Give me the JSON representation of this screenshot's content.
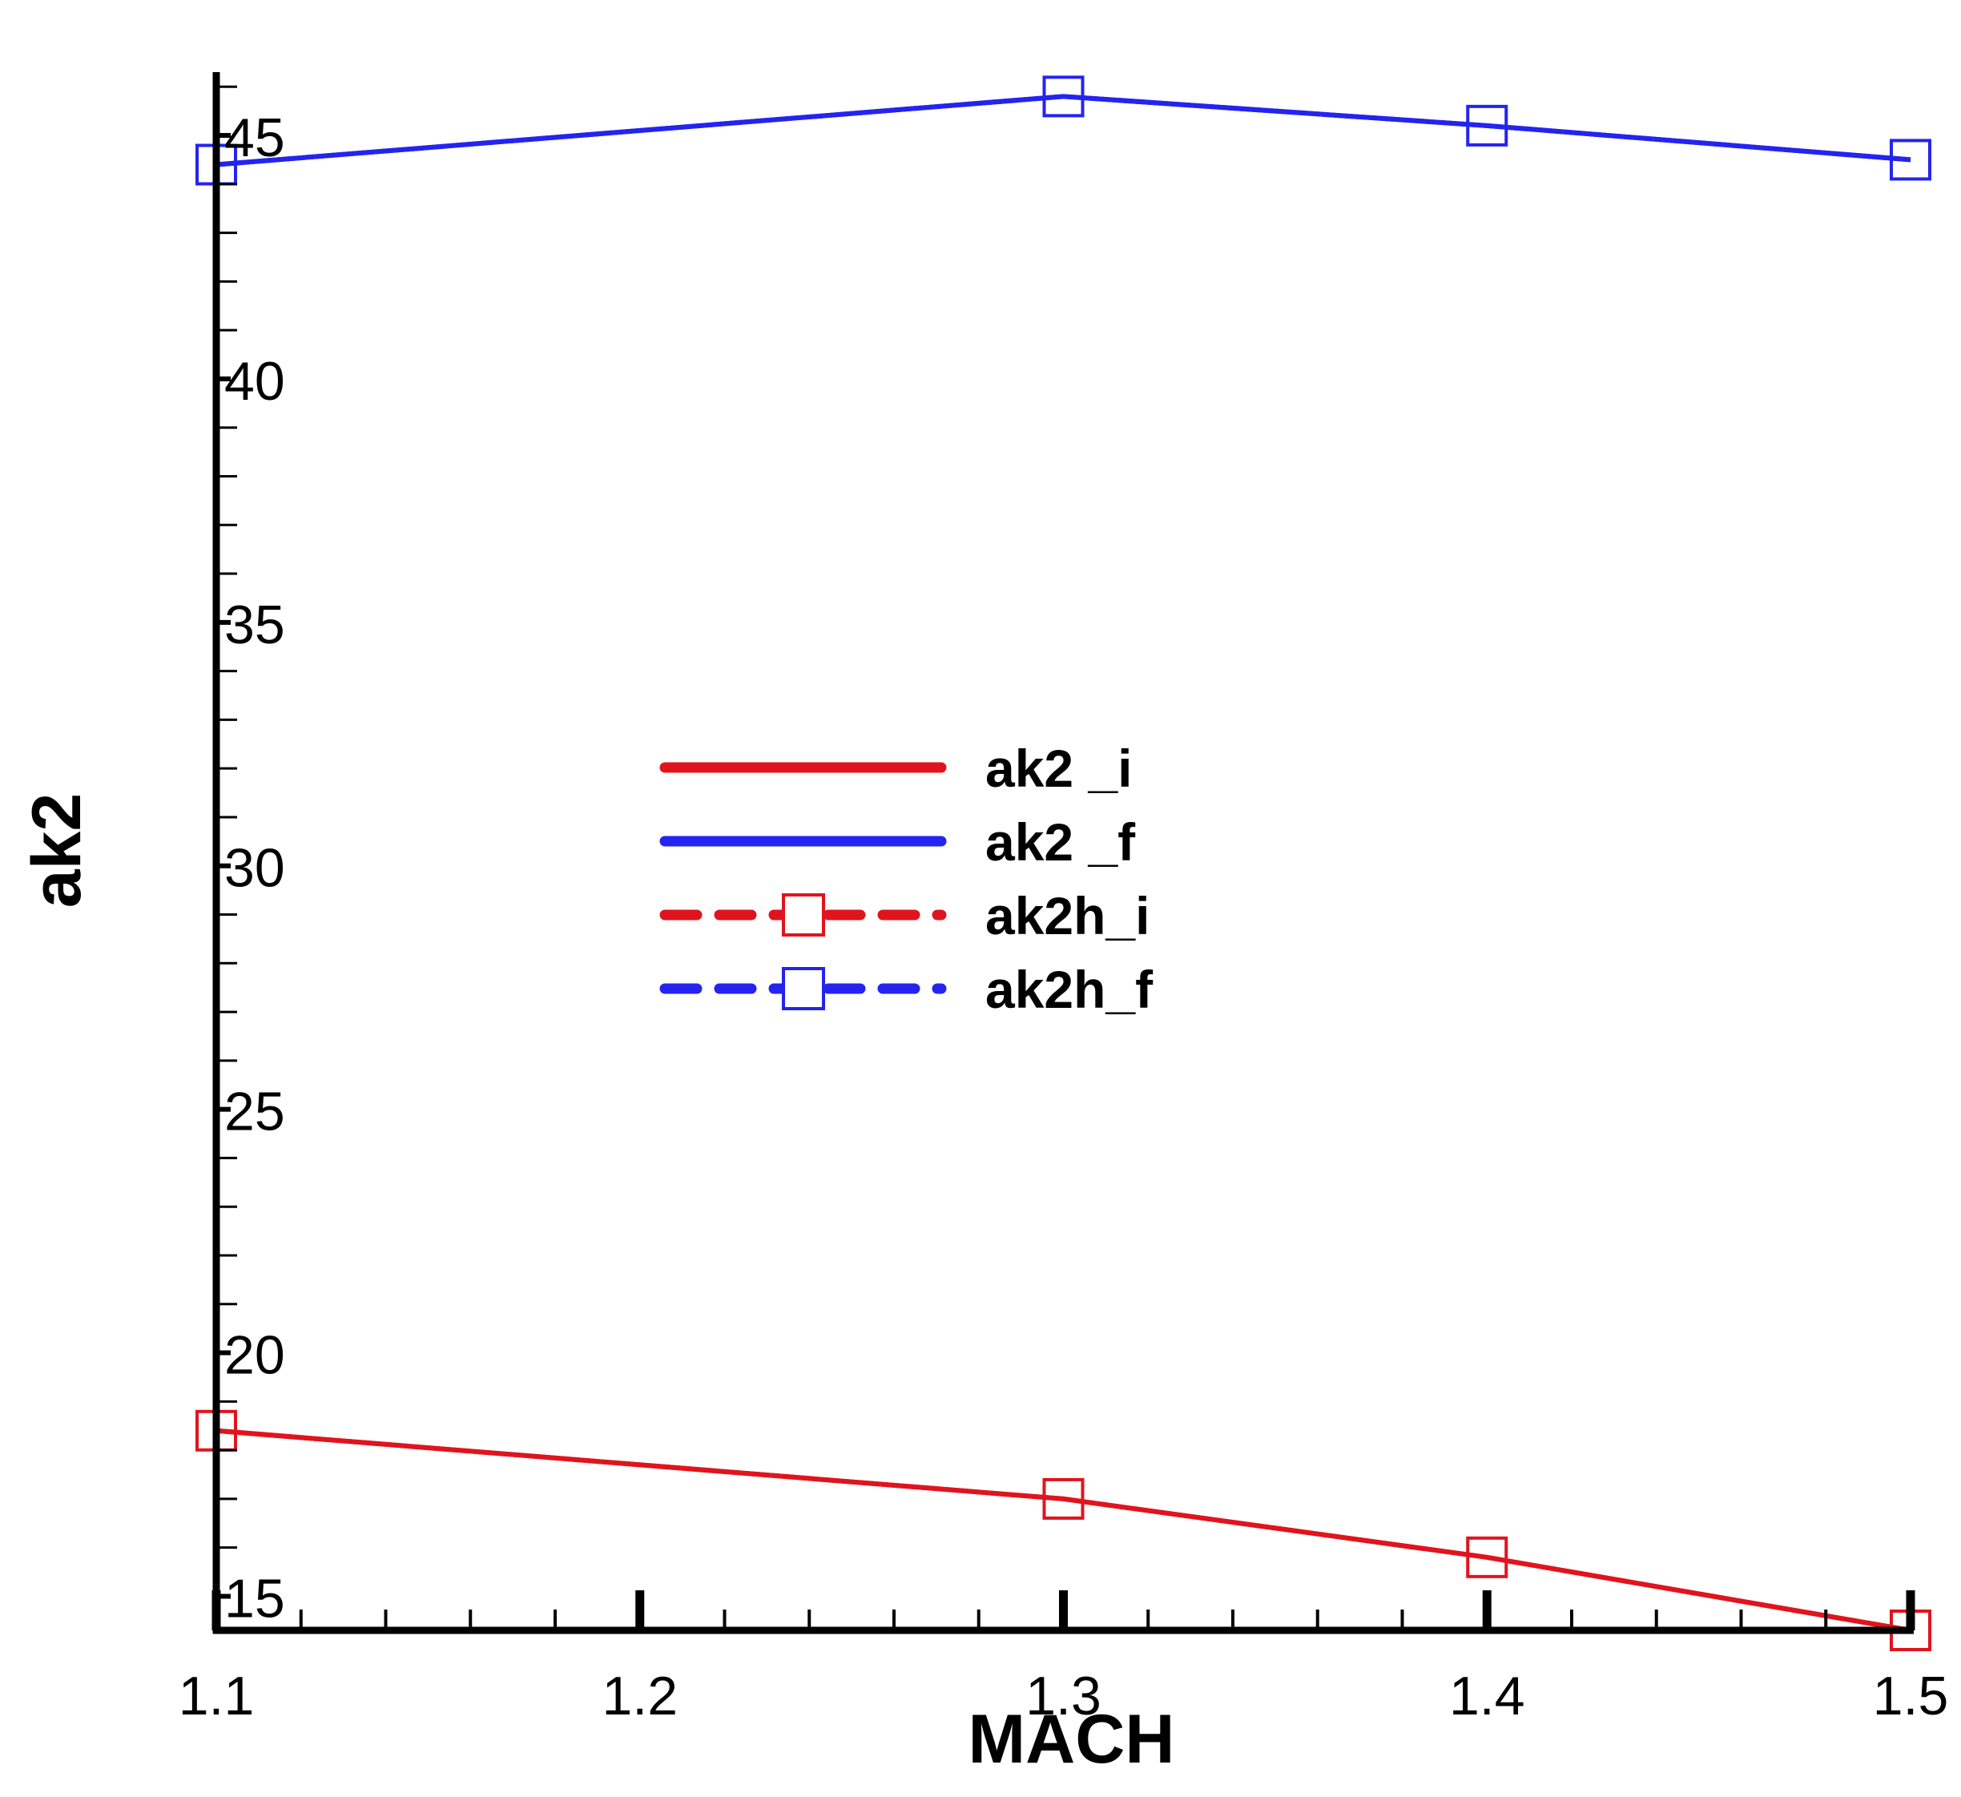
{
  "chart_data": {
    "type": "line",
    "xlabel": "MACH",
    "ylabel": "ak2",
    "xlim": [
      1.1,
      1.5
    ],
    "ylim": [
      14.3,
      46.3
    ],
    "x_ticks": [
      1.1,
      1.2,
      1.3,
      1.4,
      1.5
    ],
    "x_tick_labels": [
      "1.1",
      "1.2",
      "1.3",
      "1.4",
      "1.5"
    ],
    "y_ticks": [
      15,
      20,
      25,
      30,
      35,
      40,
      45
    ],
    "y_tick_labels": [
      "15",
      "20",
      "25",
      "30",
      "35",
      "40",
      "45"
    ],
    "grid": false,
    "legend_position": "center-left",
    "x": [
      1.1,
      1.3,
      1.4,
      1.5
    ],
    "series": [
      {
        "name": "ak2 _i",
        "style": "solid",
        "marker": "none",
        "color": "#e0141e",
        "values": [
          18.4,
          17.0,
          15.8,
          14.3
        ]
      },
      {
        "name": "ak2 _f",
        "style": "solid",
        "marker": "none",
        "color": "#2424f0",
        "values": [
          44.4,
          45.8,
          45.2,
          44.5
        ]
      },
      {
        "name": "ak2h_i",
        "style": "dashed",
        "marker": "square",
        "color": "#e0141e",
        "values": [
          18.4,
          17.0,
          15.8,
          14.3
        ]
      },
      {
        "name": "ak2h_f",
        "style": "dashed",
        "marker": "square",
        "color": "#2424f0",
        "values": [
          44.4,
          45.8,
          45.2,
          44.5
        ]
      }
    ]
  }
}
